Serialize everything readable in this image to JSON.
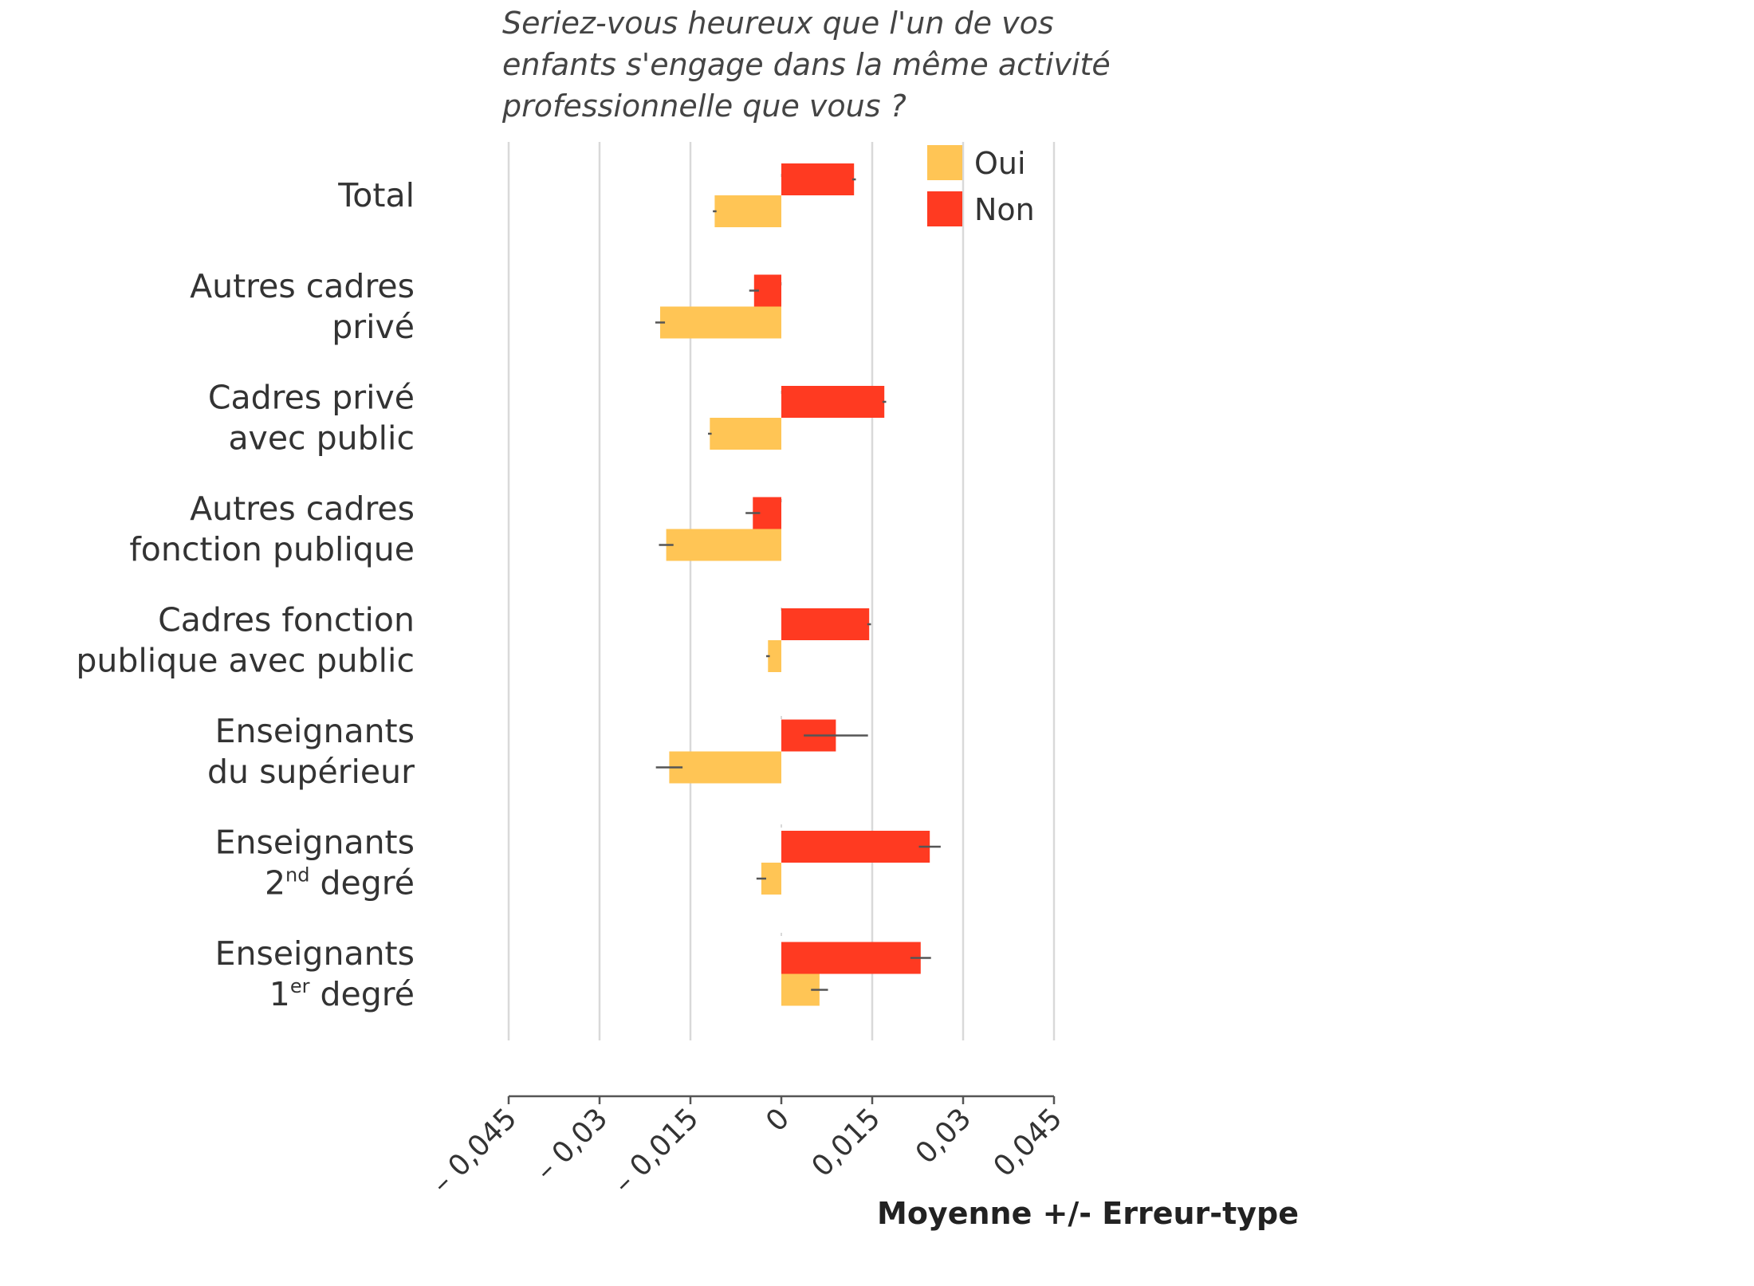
{
  "chart_data": {
    "type": "bar",
    "orientation": "horizontal",
    "title_lines": [
      "Seriez-vous heureux que l'un de vos",
      "enfants s'engage dans la même activité",
      "professionnelle que vous ?"
    ],
    "categories": [
      {
        "lines": [
          {
            "text": "Total"
          }
        ]
      },
      {
        "lines": [
          {
            "text": "Autres cadres"
          },
          {
            "text": "privé"
          }
        ]
      },
      {
        "lines": [
          {
            "text": "Cadres privé"
          },
          {
            "text": "avec public"
          }
        ]
      },
      {
        "lines": [
          {
            "text": "Autres cadres"
          },
          {
            "text": "fonction publique"
          }
        ]
      },
      {
        "lines": [
          {
            "text": "Cadres fonction"
          },
          {
            "text": "publique avec public"
          }
        ]
      },
      {
        "lines": [
          {
            "text": "Enseignants"
          },
          {
            "text": "du supérieur"
          }
        ]
      },
      {
        "lines": [
          {
            "text": "Enseignants"
          },
          {
            "text": "2",
            "sup": "nd",
            "rest": " degré"
          }
        ]
      },
      {
        "lines": [
          {
            "text": "Enseignants"
          },
          {
            "text": "1",
            "sup": "er",
            "rest": " degré"
          }
        ]
      }
    ],
    "series": [
      {
        "name": "Non",
        "color": "#ff3a21",
        "values": [
          0.012,
          -0.0045,
          0.017,
          -0.0047,
          0.0145,
          0.009,
          0.0245,
          0.023
        ],
        "errors": [
          0.0003,
          0.0008,
          0.0003,
          0.0012,
          0.0003,
          0.0053,
          0.0018,
          0.0017
        ]
      },
      {
        "name": "Oui",
        "color": "#ffc555",
        "values": [
          -0.011,
          -0.02,
          -0.0118,
          -0.019,
          -0.0022,
          -0.0185,
          -0.0033,
          0.0063
        ],
        "errors": [
          0.0003,
          0.0008,
          0.0003,
          0.0012,
          0.0003,
          0.0022,
          0.0008,
          0.0014
        ]
      }
    ],
    "legend": [
      {
        "name": "Oui",
        "color": "#ffc555"
      },
      {
        "name": "Non",
        "color": "#ff3a21"
      }
    ],
    "legend_position": "top-right",
    "xlim": [
      -0.045,
      0.045
    ],
    "xticks": [
      -0.045,
      -0.03,
      -0.015,
      0,
      0.015,
      0.03,
      0.045
    ],
    "xtick_labels": [
      "– 0,045",
      "– 0,03",
      "– 0,015",
      "0",
      "0,015",
      "0,03",
      "0,045"
    ],
    "xlabel": "Moyenne +/- Erreur-type",
    "grid": true,
    "colors": {
      "grid": "#d9d9d9",
      "axis": "#555555",
      "error_bar": "#555555"
    }
  }
}
